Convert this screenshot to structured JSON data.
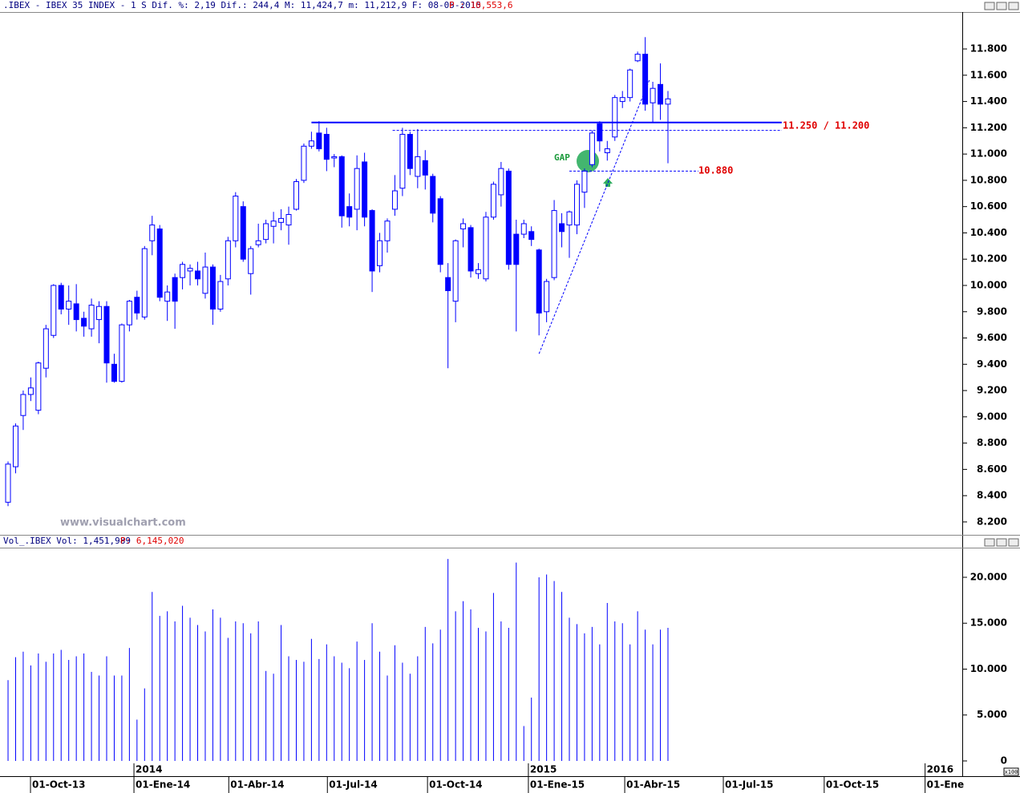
{
  "chart_data": [
    {
      "type": "candlestick",
      "title": ".IBEX - IBEX 35 INDEX -  1 S Dif. %: 2,19 Dif.: 244,4 M: 11,424,7 m: 11,212,9 F: 08-05-2015",
      "subtitle": "P : 10,553,6",
      "watermark": "www.visualchart.com",
      "color": "#0000ff",
      "up_color": "#ffffff",
      "down_color": "#0000ff",
      "x": [
        0,
        1,
        2,
        3,
        4,
        5,
        6,
        7,
        8,
        9,
        10,
        11,
        12,
        13,
        14,
        15,
        16,
        17,
        18,
        19,
        20,
        21,
        22,
        23,
        24,
        25,
        26,
        27,
        28,
        29,
        30,
        31,
        32,
        33,
        34,
        35,
        36,
        37,
        38,
        39,
        40,
        41,
        42,
        43,
        44,
        45,
        46,
        47,
        48,
        49,
        50,
        51,
        52,
        53,
        54,
        55,
        56,
        57,
        58,
        59,
        60,
        61,
        62,
        63,
        64,
        65,
        66,
        67,
        68,
        69,
        70,
        71,
        72,
        73,
        74,
        75,
        76,
        77,
        78,
        79,
        80,
        81,
        82,
        83,
        84,
        85,
        86,
        87
      ],
      "open": [
        8350,
        8620,
        9010,
        9170,
        9050,
        9370,
        9620,
        10000,
        9820,
        9860,
        9750,
        9670,
        9740,
        9840,
        9400,
        9270,
        9700,
        9910,
        9760,
        10340,
        10430,
        9880,
        10060,
        10060,
        10110,
        10110,
        9940,
        10140,
        9820,
        10050,
        10340,
        10600,
        10090,
        10310,
        10350,
        10450,
        10480,
        10460,
        10580,
        10800,
        11060,
        11160,
        11150,
        10970,
        10980,
        10600,
        10580,
        10940,
        10570,
        10150,
        10340,
        10580,
        10740,
        11150,
        10830,
        10950,
        10830,
        10660,
        10060,
        9880,
        10430,
        10440,
        10090,
        10050,
        10520,
        10690,
        10870,
        10390,
        10390,
        10410,
        10270,
        9800,
        10060,
        10470,
        10460,
        10460,
        10710,
        10920,
        11230,
        11010,
        11130,
        11400,
        11430,
        11710,
        11760,
        11390,
        11530,
        11380
      ],
      "close": [
        8640,
        8930,
        9170,
        9220,
        9410,
        9670,
        10000,
        9820,
        9880,
        9740,
        9690,
        9850,
        9840,
        9410,
        9270,
        9700,
        9880,
        9790,
        10280,
        10460,
        9910,
        9950,
        9880,
        10160,
        10130,
        10050,
        10140,
        9820,
        10030,
        10340,
        10680,
        10200,
        10280,
        10340,
        10470,
        10490,
        10510,
        10540,
        10790,
        11060,
        11100,
        11040,
        10960,
        10980,
        10530,
        10520,
        10890,
        10520,
        10110,
        10340,
        10490,
        10720,
        11150,
        10890,
        10980,
        10840,
        10550,
        10160,
        9960,
        10340,
        10470,
        10110,
        10120,
        10520,
        10770,
        10890,
        10160,
        10160,
        10470,
        10350,
        9790,
        10030,
        10570,
        10410,
        10560,
        10770,
        10870,
        11160,
        11100,
        11040,
        11430,
        11430,
        11640,
        11760,
        11380,
        11500,
        11380,
        11420
      ],
      "high": [
        8660,
        8950,
        9200,
        9300,
        9420,
        9700,
        10010,
        10020,
        10000,
        10010,
        9800,
        9900,
        9880,
        9880,
        9480,
        9710,
        9890,
        9960,
        10300,
        10530,
        10460,
        10000,
        10090,
        10180,
        10160,
        10180,
        10250,
        10160,
        10080,
        10370,
        10710,
        10640,
        10300,
        10470,
        10500,
        10560,
        10580,
        10600,
        10810,
        11080,
        11170,
        11250,
        11200,
        11000,
        10990,
        10700,
        10990,
        11010,
        10580,
        10400,
        10510,
        10840,
        11200,
        11170,
        11190,
        11030,
        10850,
        10680,
        10170,
        10350,
        10510,
        10460,
        10170,
        10560,
        10790,
        10940,
        10890,
        10500,
        10500,
        10450,
        10280,
        10050,
        10650,
        10550,
        10570,
        10800,
        10890,
        11180,
        11250,
        11100,
        11450,
        11480,
        11650,
        11780,
        11890,
        11550,
        11690,
        11480
      ],
      "low": [
        8320,
        8570,
        8900,
        9120,
        9020,
        9300,
        9600,
        9780,
        9700,
        9650,
        9610,
        9610,
        9560,
        9260,
        9260,
        9260,
        9650,
        9740,
        9740,
        10230,
        9880,
        9730,
        9670,
        9970,
        10000,
        10000,
        9900,
        9700,
        9800,
        10000,
        10290,
        10180,
        9930,
        10290,
        10320,
        10320,
        10420,
        10310,
        10570,
        10780,
        11040,
        11020,
        10870,
        10900,
        10440,
        10450,
        10420,
        10450,
        9950,
        10100,
        10250,
        10530,
        10680,
        10840,
        10740,
        10730,
        10480,
        10100,
        9370,
        9720,
        10290,
        10060,
        10050,
        10030,
        10500,
        10600,
        10120,
        9650,
        10360,
        10300,
        9620,
        9720,
        10040,
        10290,
        10210,
        10390,
        10590,
        10900,
        11020,
        10950,
        11100,
        11350,
        11400,
        11700,
        11330,
        11240,
        11260,
        10930
      ],
      "xlim": [
        -1.06,
        125.8
      ],
      "ylim": [
        8108,
        12081
      ],
      "yticks": [
        {
          "value": 8200,
          "label": "8.200"
        },
        {
          "value": 8400,
          "label": "8.400"
        },
        {
          "value": 8600,
          "label": "8.600"
        },
        {
          "value": 8800,
          "label": "8.800"
        },
        {
          "value": 9000,
          "label": "9.000"
        },
        {
          "value": 9200,
          "label": "9.200"
        },
        {
          "value": 9400,
          "label": "9.400"
        },
        {
          "value": 9600,
          "label": "9.600"
        },
        {
          "value": 9800,
          "label": "9.800"
        },
        {
          "value": 10000,
          "label": "10.000"
        },
        {
          "value": 10200,
          "label": "10.200"
        },
        {
          "value": 10400,
          "label": "10.400"
        },
        {
          "value": 10600,
          "label": "10.600"
        },
        {
          "value": 10800,
          "label": "10.800"
        },
        {
          "value": 11000,
          "label": "11.000"
        },
        {
          "value": 11200,
          "label": "11.200"
        },
        {
          "value": 11400,
          "label": "11.400"
        },
        {
          "value": 11600,
          "label": "11.600"
        },
        {
          "value": 11800,
          "label": "11.800"
        }
      ],
      "xticks": [
        {
          "value": 2.96,
          "label": "01-Oct-13"
        },
        {
          "value": 16.6,
          "label": "01-Ene-14"
        },
        {
          "value": 29.1,
          "label": "01-Abr-14"
        },
        {
          "value": 42.1,
          "label": "01-Jul-14"
        },
        {
          "value": 55.3,
          "label": "01-Oct-14"
        },
        {
          "value": 68.6,
          "label": "01-Ene-15"
        },
        {
          "value": 81.3,
          "label": "01-Abr-15"
        },
        {
          "value": 94.3,
          "label": "01-Jul-15"
        },
        {
          "value": 107.6,
          "label": "01-Oct-15"
        },
        {
          "value": 120.9,
          "label": "01-Ene"
        }
      ],
      "year_ticks": [
        {
          "value": 16.6,
          "label": "2014"
        },
        {
          "value": 68.6,
          "label": "2015"
        },
        {
          "value": 120.9,
          "label": "2016"
        }
      ],
      "lines": [
        {
          "x": [
            40,
            102
          ],
          "y": [
            11240,
            11240
          ],
          "style": "solid"
        },
        {
          "x": [
            50.7,
            102
          ],
          "y": [
            11180,
            11180
          ],
          "style": "dashed"
        },
        {
          "x": [
            74,
            91
          ],
          "y": [
            10870,
            10870
          ],
          "style": "dashed"
        },
        {
          "x": [
            70,
            84.6
          ],
          "y": [
            9480,
            11570
          ],
          "style": "dashed"
        }
      ],
      "annotations": [
        {
          "text": "11.250 / 11.200"
        },
        {
          "text": "10.880"
        },
        {
          "text": "GAP"
        }
      ]
    },
    {
      "type": "bar",
      "title": "Vol_.IBEX Vol: 1,451,989",
      "subtitle": "P: 6,145,020",
      "unit_label": "x100",
      "color": "#0000ff",
      "x": [
        0,
        1,
        2,
        3,
        4,
        5,
        6,
        7,
        8,
        9,
        10,
        11,
        12,
        13,
        14,
        15,
        16,
        17,
        18,
        19,
        20,
        21,
        22,
        23,
        24,
        25,
        26,
        27,
        28,
        29,
        30,
        31,
        32,
        33,
        34,
        35,
        36,
        37,
        38,
        39,
        40,
        41,
        42,
        43,
        44,
        45,
        46,
        47,
        48,
        49,
        50,
        51,
        52,
        53,
        54,
        55,
        56,
        57,
        58,
        59,
        60,
        61,
        62,
        63,
        64,
        65,
        66,
        67,
        68,
        69,
        70,
        71,
        72,
        73,
        74,
        75,
        76,
        77,
        78,
        79,
        80,
        81,
        82,
        83,
        84,
        85,
        86,
        87
      ],
      "values": [
        8800,
        11300,
        11900,
        10400,
        11700,
        10800,
        11700,
        12100,
        11000,
        11400,
        11700,
        9700,
        9300,
        11400,
        9300,
        9300,
        12300,
        4500,
        7900,
        18400,
        15800,
        16300,
        15200,
        16900,
        15600,
        14800,
        14100,
        16500,
        15600,
        13400,
        15200,
        15000,
        13900,
        15200,
        9800,
        9500,
        14800,
        11400,
        11000,
        10800,
        13300,
        11100,
        12700,
        11400,
        10700,
        10100,
        13000,
        11000,
        15000,
        11900,
        9300,
        12600,
        10700,
        9500,
        11400,
        14600,
        12800,
        14300,
        22000,
        16300,
        17400,
        16500,
        14500,
        14100,
        18300,
        15200,
        14500,
        21600,
        3800,
        6900,
        20000,
        20300,
        19600,
        18400,
        15600,
        14900,
        13900,
        14600,
        12700,
        17200,
        15200,
        15000,
        12700,
        16300,
        14300,
        12700,
        14300,
        14500
      ],
      "xlim": [
        -1.06,
        125.8
      ],
      "ylim": [
        -1660,
        23230
      ],
      "yticks": [
        0,
        {
          "value": 5000,
          "label": "5.000"
        },
        {
          "value": 10000,
          "label": "10.000"
        },
        {
          "value": 15000,
          "label": "15.000"
        },
        {
          "value": 20000,
          "label": "20.000"
        }
      ]
    }
  ]
}
